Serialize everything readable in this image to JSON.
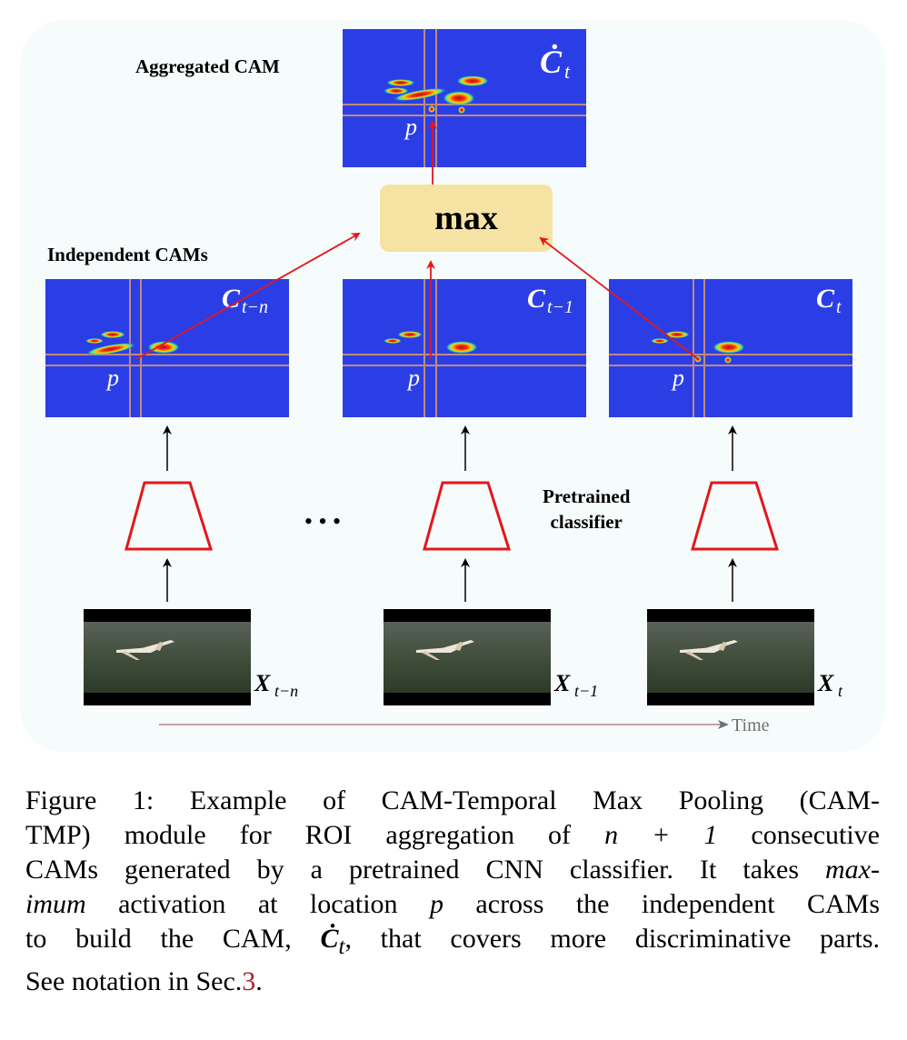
{
  "labels": {
    "aggregated": "Aggregated CAM",
    "independent": "Independent CAMs",
    "classifier_line1": "Pretrained",
    "classifier_line2": "classifier",
    "max_box": "max",
    "time": "Time",
    "ellipsis": "• • •"
  },
  "cams": {
    "aggregated": {
      "symbol": "Ċ",
      "sub": "t",
      "p": "p"
    },
    "left": {
      "symbol": "C",
      "sub": "t−n",
      "p": "p"
    },
    "middle": {
      "symbol": "C",
      "sub": "t−1",
      "p": "p"
    },
    "right": {
      "symbol": "C",
      "sub": "t",
      "p": "p"
    }
  },
  "frames": {
    "left": {
      "symbol": "X",
      "sub": "t−n"
    },
    "middle": {
      "symbol": "X",
      "sub": "t−1"
    },
    "right": {
      "symbol": "X",
      "sub": "t"
    }
  },
  "caption": {
    "line1": "Figure 1: Example of CAM-Temporal Max Pooling (CAM-",
    "line2a": "TMP) module for ROI aggregation of ",
    "line2_math": "n + 1",
    "line2b": " consecutive",
    "line3": "CAMs generated by a pretrained CNN classifier. It takes ",
    "line3_em": "max-",
    "line4_em": "imum",
    "line4a": " activation at location ",
    "line4_math": "p",
    "line4b": " across the independent CAMs",
    "line5a": "to build the CAM, ",
    "line5_math": "Ċ",
    "line5_sub": "t",
    "line5b": ", that covers more discriminative parts.",
    "line6a": "See notation in Sec.",
    "line6_ref": "3",
    "line6b": "."
  },
  "colors": {
    "cam_background": "#2b3ee6",
    "max_box": "#f6e3a4",
    "arrow_red": "#e2171c",
    "trapezoid": "#e2171c",
    "crosshair": "#c08a7a",
    "time_arrow": "#b08888"
  }
}
